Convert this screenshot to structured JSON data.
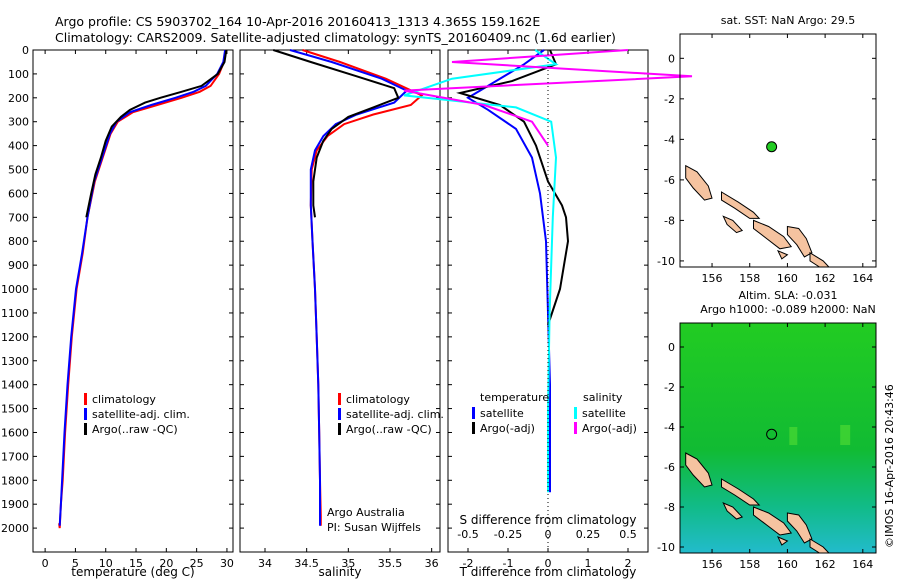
{
  "header": {
    "line1": "Argo profile: CS 5903702_164 10-Apr-2016 20160413_1313 4.365S 159.162E",
    "line2": "Climatology: CARS2009. Satellite-adjusted climatology: synTS_20160409.nc (1.6d earlier)"
  },
  "colors": {
    "climatology": "#ff0000",
    "satellite": "#0000ff",
    "argo": "#000000",
    "argo_adj_salinity": "#ff00ff",
    "satellite_salinity": "#00ffff",
    "land": "#f5c3a0"
  },
  "depth_axis": {
    "ticks": [
      "0",
      "100",
      "200",
      "300",
      "400",
      "500",
      "600",
      "700",
      "800",
      "900",
      "1000",
      "1100",
      "1200",
      "1300",
      "1400",
      "1500",
      "1600",
      "1700",
      "1800",
      "1900",
      "2000"
    ]
  },
  "panel_temp": {
    "xlabel": "temperature (deg C)",
    "xticks": [
      "0",
      "5",
      "10",
      "15",
      "20",
      "25",
      "30"
    ],
    "legend": [
      "climatology",
      "satellite-adj. clim.",
      "Argo(..raw -QC)"
    ]
  },
  "panel_sal": {
    "xlabel": "salinity",
    "xticks": [
      "34",
      "34.5",
      "35",
      "35.5",
      "36"
    ],
    "legend": [
      "climatology",
      "satellite-adj. clim.",
      "Argo(..raw -QC)"
    ],
    "credit1": "Argo Australia",
    "credit2": "PI: Susan Wijffels"
  },
  "panel_diff": {
    "xlabel": "T difference from climatology",
    "xticks": [
      "-2",
      "-1",
      "0",
      "1",
      "2"
    ],
    "top_label": "S difference from climatology",
    "top_ticks": [
      "-0.5",
      "-0.25",
      "0",
      "0.25",
      "0.5"
    ],
    "legend_temp_title": "temperature",
    "legend_sal_title": "salinity",
    "legend_temp": [
      "satellite",
      "Argo(-adj)"
    ],
    "legend_sal": [
      "satellite",
      "Argo(-adj)"
    ]
  },
  "map_sst": {
    "title": "sat. SST: NaN Argo: 29.5",
    "xticks": [
      "156",
      "158",
      "160",
      "162",
      "164"
    ],
    "yticks": [
      "0",
      "-2",
      "-4",
      "-6",
      "-8",
      "-10"
    ]
  },
  "map_sla": {
    "title1": "Altim. SLA: -0.031",
    "title2": "Argo h1000: -0.089 h2000: NaN",
    "xticks": [
      "156",
      "158",
      "160",
      "162",
      "164"
    ],
    "yticks": [
      "0",
      "-2",
      "-4",
      "-6",
      "-8",
      "-10"
    ]
  },
  "watermark": "©IMOS 16-Apr-2016 20:43:46",
  "chart_data": [
    {
      "type": "line",
      "name": "temperature profile",
      "xlabel": "temperature (deg C)",
      "ylabel": "",
      "xlim": [
        -2,
        31
      ],
      "ylim": [
        2100,
        0
      ],
      "series": [
        {
          "name": "climatology",
          "x": [
            29.8,
            29.5,
            28.7,
            27.3,
            25.5,
            22.5,
            18.5,
            14.5,
            12.0,
            10.8,
            9.5,
            8.2,
            7.0,
            6.2,
            5.2,
            4.4,
            3.8,
            3.3,
            2.9,
            2.6,
            2.4,
            2.3
          ],
          "y": [
            0,
            50,
            100,
            150,
            175,
            200,
            230,
            260,
            300,
            350,
            450,
            550,
            700,
            850,
            1000,
            1200,
            1400,
            1600,
            1800,
            1900,
            2000,
            1980
          ]
        },
        {
          "name": "satellite-adj. clim.",
          "x": [
            29.7,
            29.4,
            28.4,
            26.5,
            24.5,
            21.5,
            17.5,
            14.0,
            11.8,
            10.7,
            9.4,
            8.1,
            7.0,
            6.1,
            5.1,
            4.3,
            3.7,
            3.2,
            2.8,
            2.6,
            2.4
          ],
          "y": [
            0,
            50,
            100,
            150,
            175,
            200,
            230,
            260,
            300,
            350,
            450,
            550,
            700,
            850,
            1000,
            1200,
            1400,
            1600,
            1800,
            1900,
            1990
          ]
        },
        {
          "name": "Argo(..raw -QC)",
          "x": [
            29.9,
            29.6,
            28.5,
            25.8,
            22.5,
            19.0,
            16.5,
            14.0,
            12.5,
            11.0,
            10.0,
            9.2,
            8.3,
            7.6,
            6.8
          ],
          "y": [
            0,
            50,
            100,
            150,
            175,
            200,
            220,
            250,
            280,
            320,
            380,
            450,
            520,
            600,
            700
          ]
        }
      ]
    },
    {
      "type": "line",
      "name": "salinity profile",
      "xlabel": "salinity",
      "ylabel": "",
      "xlim": [
        33.7,
        36.1
      ],
      "ylim": [
        2100,
        0
      ],
      "series": [
        {
          "name": "climatology",
          "x": [
            34.45,
            34.9,
            35.45,
            35.88,
            35.75,
            35.3,
            34.95,
            34.75,
            34.62,
            34.56,
            34.55,
            34.57,
            34.6,
            34.62,
            34.64,
            34.65,
            34.66,
            34.67,
            34.67
          ],
          "y": [
            0,
            50,
            120,
            190,
            230,
            270,
            310,
            360,
            420,
            500,
            650,
            800,
            1000,
            1200,
            1400,
            1600,
            1800,
            1950,
            1990
          ]
        },
        {
          "name": "satellite-adj. clim.",
          "x": [
            34.3,
            34.8,
            35.4,
            35.7,
            35.55,
            35.1,
            34.85,
            34.7,
            34.6,
            34.55,
            34.55,
            34.57,
            34.6,
            34.62,
            34.64,
            34.65,
            34.66,
            34.66
          ],
          "y": [
            0,
            50,
            120,
            170,
            220,
            270,
            310,
            360,
            420,
            500,
            650,
            800,
            1000,
            1200,
            1400,
            1600,
            1800,
            1990
          ]
        },
        {
          "name": "Argo(..raw -QC)",
          "x": [
            34.1,
            34.55,
            35.1,
            35.55,
            35.6,
            35.3,
            35.0,
            34.8,
            34.7,
            34.62,
            34.58,
            34.58,
            34.6
          ],
          "y": [
            0,
            50,
            110,
            160,
            200,
            240,
            280,
            330,
            380,
            450,
            550,
            650,
            700
          ]
        }
      ]
    },
    {
      "type": "line",
      "name": "difference from climatology",
      "xlabel": "T difference from climatology",
      "ylabel": "",
      "xlim": [
        -2.5,
        2.5
      ],
      "ylim": [
        2100,
        0
      ],
      "series": [
        {
          "name": "temperature satellite",
          "x": [
            -0.1,
            -0.6,
            -1.5,
            -2.0,
            -1.5,
            -0.8,
            -0.4,
            -0.2,
            -0.05,
            0.0,
            0.05,
            0.05,
            0.05
          ],
          "y": [
            0,
            60,
            150,
            200,
            250,
            330,
            450,
            600,
            800,
            1100,
            1400,
            1600,
            1850
          ]
        },
        {
          "name": "temperature Argo(-adj)",
          "x": [
            0.05,
            0.2,
            -0.9,
            -2.2,
            -1.2,
            -0.6,
            -0.3,
            0.0,
            0.35,
            0.45,
            0.5,
            0.4,
            0.3,
            0.1,
            0.0
          ],
          "y": [
            0,
            60,
            130,
            180,
            230,
            300,
            400,
            550,
            650,
            700,
            800,
            900,
            1000,
            1100,
            1150
          ]
        },
        {
          "name": "salinity satellite",
          "x": [
            -0.08,
            0.05,
            -0.6,
            -0.9,
            -0.2,
            0.02,
            0.05,
            0.03,
            0.01,
            0.0,
            0.0
          ],
          "y": [
            0,
            60,
            120,
            190,
            240,
            300,
            450,
            700,
            1100,
            1500,
            1850
          ]
        },
        {
          "name": "salinity Argo(-adj)",
          "x": [
            0.5,
            -0.6,
            0.9,
            -0.9,
            -0.4,
            -0.1,
            0.0
          ],
          "y": [
            0,
            50,
            110,
            170,
            230,
            300,
            400
          ]
        }
      ]
    }
  ]
}
